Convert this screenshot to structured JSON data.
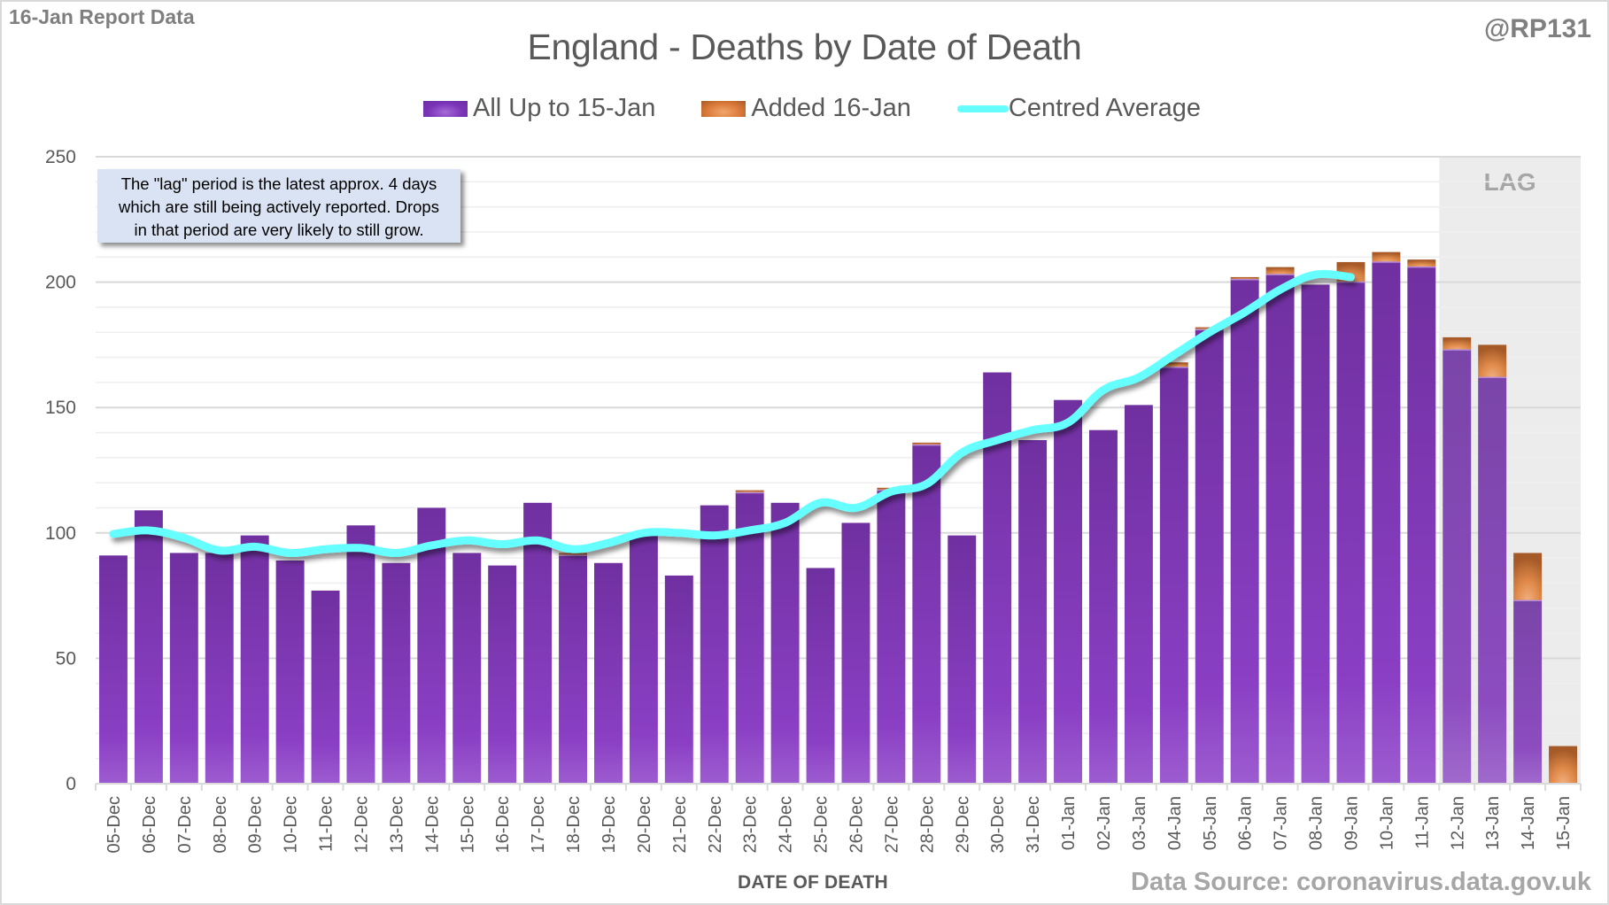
{
  "header": {
    "report_label": "16-Jan Report Data",
    "author_handle": "@RP131"
  },
  "note": {
    "line1": "The \"lag\" period is the latest approx. 4 days",
    "line2": "which are still being actively reported.  Drops",
    "line3": "in that period are very likely to still grow."
  },
  "footer": {
    "source": "Data Source: coronavirus.data.gov.uk"
  },
  "colors": {
    "all_up_to": "#7030a0",
    "added": "#d9793a",
    "average": "#66ffff",
    "lag_shade": "#ececec"
  },
  "chart_data": {
    "type": "bar",
    "stacked": true,
    "title": "England - Deaths by Date of Death",
    "xlabel": "DATE OF DEATH",
    "ylabel": "",
    "ylim": [
      0,
      250
    ],
    "yticks": [
      0,
      50,
      100,
      150,
      200,
      250
    ],
    "minor_grid_step": 10,
    "grid": true,
    "legend_position": "top-center",
    "categories": [
      "05-Dec",
      "06-Dec",
      "07-Dec",
      "08-Dec",
      "09-Dec",
      "10-Dec",
      "11-Dec",
      "12-Dec",
      "13-Dec",
      "14-Dec",
      "15-Dec",
      "16-Dec",
      "17-Dec",
      "18-Dec",
      "19-Dec",
      "20-Dec",
      "21-Dec",
      "22-Dec",
      "23-Dec",
      "24-Dec",
      "25-Dec",
      "26-Dec",
      "27-Dec",
      "28-Dec",
      "29-Dec",
      "30-Dec",
      "31-Dec",
      "01-Jan",
      "02-Jan",
      "03-Jan",
      "04-Jan",
      "05-Jan",
      "06-Jan",
      "07-Jan",
      "08-Jan",
      "09-Jan",
      "10-Jan",
      "11-Jan",
      "12-Jan",
      "13-Jan",
      "14-Jan",
      "15-Jan"
    ],
    "series": [
      {
        "name": "All Up to 15-Jan",
        "kind": "bar",
        "values": [
          91,
          109,
          92,
          92,
          99,
          89,
          77,
          103,
          88,
          110,
          92,
          87,
          112,
          91,
          88,
          100,
          83,
          111,
          116,
          112,
          86,
          104,
          117,
          135,
          99,
          164,
          137,
          153,
          141,
          151,
          166,
          181,
          201,
          203,
          199,
          200,
          208,
          206,
          173,
          162,
          73,
          0
        ]
      },
      {
        "name": "Added 16-Jan",
        "kind": "bar",
        "values": [
          0,
          0,
          0,
          0,
          0,
          0,
          0,
          0,
          0,
          0,
          0,
          0,
          0,
          1,
          0,
          0,
          0,
          0,
          1,
          0,
          0,
          0,
          1,
          1,
          0,
          0,
          0,
          0,
          0,
          0,
          2,
          1,
          1,
          3,
          0,
          8,
          4,
          3,
          5,
          13,
          19,
          15
        ]
      },
      {
        "name": "Centred Average",
        "kind": "line",
        "values": [
          99.6,
          101,
          98,
          93,
          94.5,
          92,
          93.5,
          94,
          92,
          95,
          97,
          95.5,
          97,
          93.5,
          96,
          100,
          100,
          99,
          101,
          104,
          112,
          110,
          116.5,
          119.5,
          132,
          137,
          141,
          144,
          157,
          162,
          171,
          180,
          188,
          197,
          203,
          202,
          null,
          null,
          null,
          null,
          null,
          null
        ]
      }
    ],
    "annotations": [
      {
        "text": "LAG",
        "range": [
          "12-Jan",
          "15-Jan"
        ]
      }
    ]
  }
}
